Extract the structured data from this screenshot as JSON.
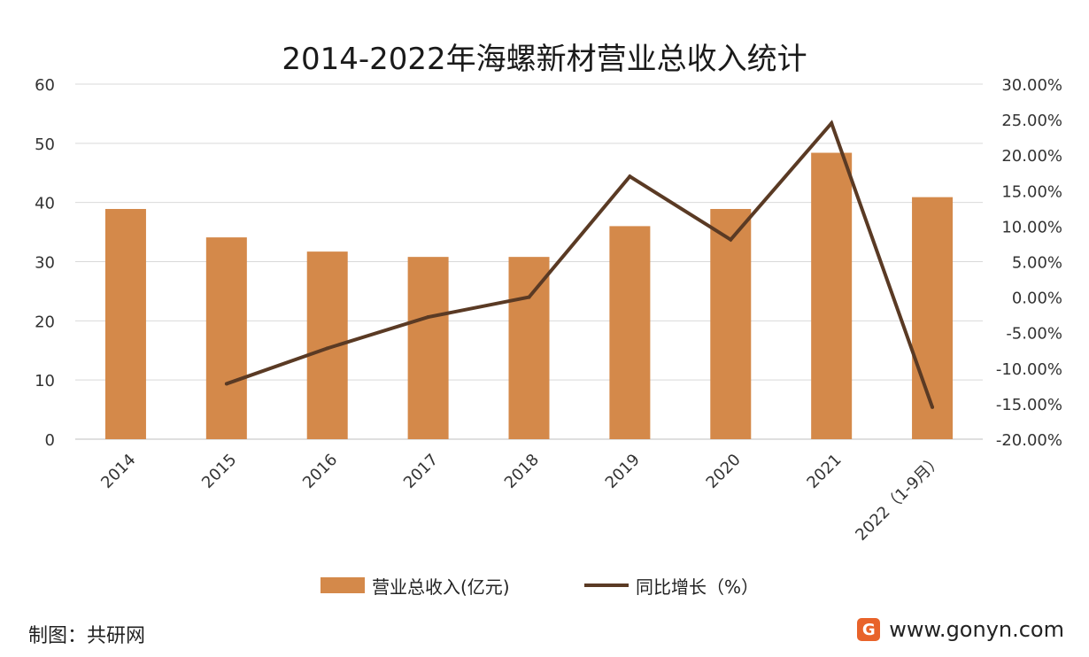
{
  "chart_data": {
    "type": "bar+line",
    "title": "2014-2022年海螺新材营业总收入统计",
    "categories": [
      "2014",
      "2015",
      "2016",
      "2017",
      "2018",
      "2019",
      "2020",
      "2021",
      "2022（1-9月）"
    ],
    "series": [
      {
        "name": "营业总收入(亿元)",
        "type": "bar",
        "axis": "left",
        "color": "#D4894A",
        "values": [
          38.9,
          34.1,
          31.7,
          30.8,
          30.8,
          36.0,
          38.9,
          48.4,
          40.9
        ]
      },
      {
        "name": "同比增长（%）",
        "type": "line",
        "axis": "right",
        "color": "#5A3A24",
        "values": [
          null,
          -12.2,
          -7.2,
          -2.8,
          0.0,
          17.0,
          8.1,
          24.5,
          -15.5
        ]
      }
    ],
    "y_left": {
      "range": [
        0,
        60
      ],
      "ticks": [
        "0",
        "10",
        "20",
        "30",
        "40",
        "50",
        "60"
      ]
    },
    "y_right": {
      "range": [
        -20,
        30
      ],
      "ticks": [
        "-20.00%",
        "-15.00%",
        "-10.00%",
        "-5.00%",
        "0.00%",
        "5.00%",
        "10.00%",
        "15.00%",
        "20.00%",
        "25.00%",
        "30.00%"
      ]
    },
    "grid": true,
    "legend_position": "bottom"
  },
  "footer": {
    "credit": "制图：共研网",
    "site": "www.gonyn.com",
    "logo": "G"
  }
}
